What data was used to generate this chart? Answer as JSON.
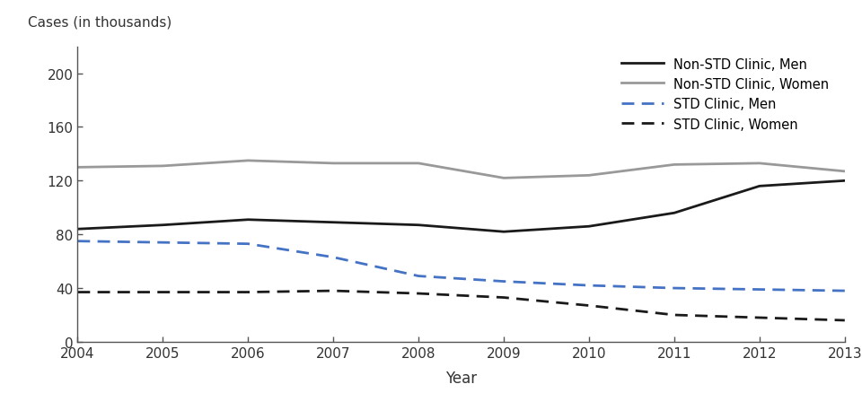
{
  "years": [
    2004,
    2005,
    2006,
    2007,
    2008,
    2009,
    2010,
    2011,
    2012,
    2013
  ],
  "non_std_men": [
    84,
    87,
    91,
    89,
    87,
    82,
    86,
    96,
    116,
    120
  ],
  "non_std_women": [
    130,
    131,
    135,
    133,
    133,
    122,
    124,
    132,
    133,
    127
  ],
  "std_men": [
    75,
    74,
    73,
    63,
    49,
    45,
    42,
    40,
    39,
    38
  ],
  "std_women": [
    37,
    37,
    37,
    38,
    36,
    33,
    27,
    20,
    18,
    16
  ],
  "ylim": [
    0,
    220
  ],
  "yticks": [
    0,
    40,
    80,
    120,
    160,
    200
  ],
  "xlabel": "Year",
  "ylabel": "Cases (in thousands)",
  "legend_labels": [
    "Non-STD Clinic, Men",
    "Non-STD Clinic, Women",
    "STD Clinic, Men",
    "STD Clinic, Women"
  ],
  "colors": {
    "non_std_men": "#1a1a1a",
    "non_std_women": "#999999",
    "std_men": "#4472c4",
    "std_women": "#1a1a1a"
  },
  "background_color": "#ffffff"
}
